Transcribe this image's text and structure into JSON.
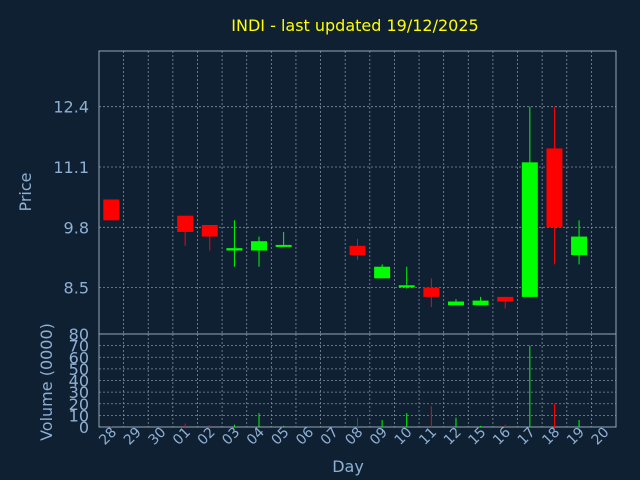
{
  "chart_data": [
    {
      "type": "candlestick",
      "title": "INDI - last updated 19/12/2025",
      "ylabel": "Price",
      "ylim": [
        7.5,
        13.6
      ],
      "yticks": [
        8.5,
        9.8,
        11.1,
        12.4
      ],
      "ytick_labels": [
        "8.5",
        "9.8",
        "11.1",
        "12.4"
      ],
      "colors": {
        "up": "#00ff00",
        "down": "#ff0000",
        "grid": "#7f8e9c",
        "title": "#ffff00",
        "text": "#8fb0d3",
        "background": "#0f2033"
      },
      "categories": [
        "28",
        "29",
        "30",
        "01",
        "02",
        "03",
        "04",
        "05",
        "06",
        "07",
        "08",
        "09",
        "10",
        "11",
        "12",
        "15",
        "16",
        "17",
        "18",
        "19",
        "20"
      ],
      "candles": [
        {
          "day": "28",
          "open": 10.4,
          "high": 10.4,
          "low": 9.95,
          "close": 9.95
        },
        {
          "day": "01",
          "open": 10.05,
          "high": 10.05,
          "low": 9.4,
          "close": 9.7
        },
        {
          "day": "02",
          "open": 9.85,
          "high": 9.85,
          "low": 9.3,
          "close": 9.6
        },
        {
          "day": "03",
          "open": 9.3,
          "high": 9.95,
          "low": 8.95,
          "close": 9.35
        },
        {
          "day": "04",
          "open": 9.3,
          "high": 9.6,
          "low": 8.95,
          "close": 9.5
        },
        {
          "day": "05",
          "open": 9.4,
          "high": 9.7,
          "low": 9.38,
          "close": 9.42
        },
        {
          "day": "08",
          "open": 9.4,
          "high": 9.55,
          "low": 9.1,
          "close": 9.2
        },
        {
          "day": "09",
          "open": 8.7,
          "high": 9.0,
          "low": 8.7,
          "close": 8.95
        },
        {
          "day": "10",
          "open": 8.52,
          "high": 8.95,
          "low": 8.48,
          "close": 8.55
        },
        {
          "day": "11",
          "open": 8.5,
          "high": 8.7,
          "low": 8.08,
          "close": 8.3
        },
        {
          "day": "12",
          "open": 8.12,
          "high": 8.25,
          "low": 8.12,
          "close": 8.2
        },
        {
          "day": "15",
          "open": 8.12,
          "high": 8.3,
          "low": 8.12,
          "close": 8.22
        },
        {
          "day": "16",
          "open": 8.3,
          "high": 8.3,
          "low": 8.05,
          "close": 8.2
        },
        {
          "day": "17",
          "open": 8.3,
          "high": 12.4,
          "low": 8.3,
          "close": 11.2
        },
        {
          "day": "18",
          "open": 11.5,
          "high": 12.4,
          "low": 9.0,
          "close": 9.8
        },
        {
          "day": "19",
          "open": 9.2,
          "high": 9.95,
          "low": 9.0,
          "close": 9.6
        }
      ]
    },
    {
      "type": "bar",
      "ylabel": "Volume (0000)",
      "xlabel": "Day",
      "ylim": [
        0,
        80
      ],
      "yticks": [
        0,
        10,
        20,
        30,
        40,
        50,
        60,
        70,
        80
      ],
      "ytick_labels": [
        "0",
        "10",
        "20",
        "30",
        "40",
        "50",
        "60",
        "70",
        "80"
      ],
      "categories": [
        "28",
        "29",
        "30",
        "01",
        "02",
        "03",
        "04",
        "05",
        "06",
        "07",
        "08",
        "09",
        "10",
        "11",
        "12",
        "15",
        "16",
        "17",
        "18",
        "19",
        "20"
      ],
      "bars": [
        {
          "day": "28",
          "value": 0.5,
          "direction": "down"
        },
        {
          "day": "01",
          "value": 3,
          "direction": "down"
        },
        {
          "day": "02",
          "value": 1.5,
          "direction": "down"
        },
        {
          "day": "03",
          "value": 2,
          "direction": "up"
        },
        {
          "day": "04",
          "value": 12,
          "direction": "up"
        },
        {
          "day": "05",
          "value": 1,
          "direction": "up"
        },
        {
          "day": "08",
          "value": 8,
          "direction": "down"
        },
        {
          "day": "09",
          "value": 6,
          "direction": "up"
        },
        {
          "day": "10",
          "value": 12,
          "direction": "up"
        },
        {
          "day": "11",
          "value": 18,
          "direction": "down"
        },
        {
          "day": "12",
          "value": 8,
          "direction": "up"
        },
        {
          "day": "15",
          "value": 1,
          "direction": "up"
        },
        {
          "day": "16",
          "value": 2,
          "direction": "down"
        },
        {
          "day": "17",
          "value": 70,
          "direction": "up"
        },
        {
          "day": "18",
          "value": 20,
          "direction": "down"
        },
        {
          "day": "19",
          "value": 6,
          "direction": "up"
        }
      ]
    }
  ]
}
